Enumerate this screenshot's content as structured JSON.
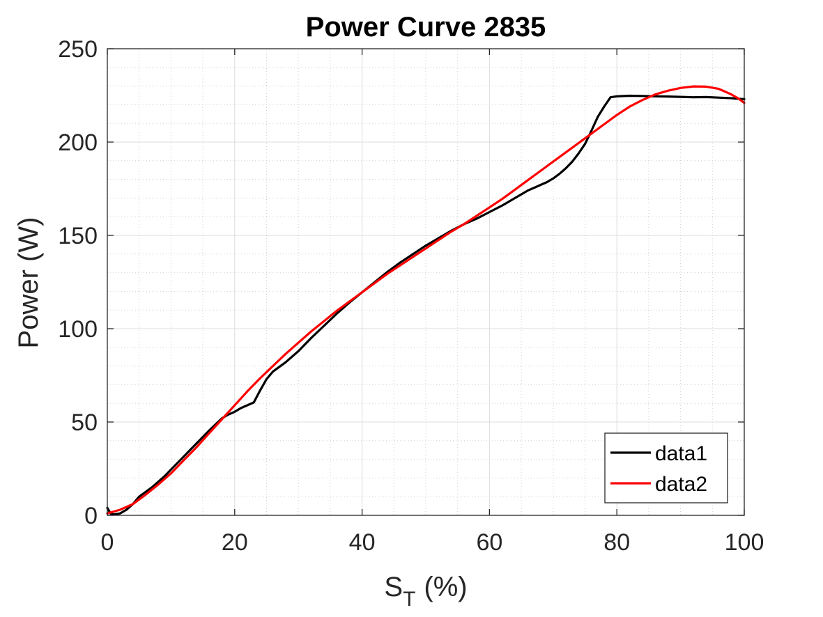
{
  "chart_data": {
    "type": "line",
    "title": "Power Curve 2835",
    "xlabel": "S",
    "xlabel_sub": "T",
    "xlabel_unit": "(%)",
    "ylabel": "Power (W)",
    "xlim": [
      0,
      100
    ],
    "ylim": [
      0,
      250
    ],
    "xticks": [
      0,
      20,
      40,
      60,
      80,
      100
    ],
    "yticks": [
      0,
      50,
      100,
      150,
      200,
      250
    ],
    "grid": "major and minor",
    "legend_position": "bottom-right",
    "series": [
      {
        "name": "data1",
        "color": "#000000",
        "x": [
          0,
          0.5,
          1,
          2,
          3,
          4,
          5,
          6,
          7,
          8,
          9,
          10,
          12,
          14,
          16,
          18,
          19,
          20,
          21,
          22,
          23,
          24,
          25,
          26,
          28,
          30,
          32,
          34,
          36,
          38,
          40,
          42,
          44,
          46,
          48,
          50,
          52,
          54,
          56,
          58,
          60,
          62,
          64,
          66,
          68,
          69,
          70,
          71,
          72,
          73,
          74,
          75,
          76,
          77,
          78,
          79,
          80,
          82,
          84,
          86,
          88,
          90,
          92,
          94,
          96,
          98,
          99,
          100
        ],
        "y": [
          4,
          1,
          0.5,
          1,
          3,
          6,
          10,
          12.5,
          15,
          18,
          21,
          24.5,
          31.5,
          38.5,
          45.5,
          52,
          54,
          55.5,
          57.5,
          59,
          60.5,
          67,
          73,
          77,
          82,
          88,
          95,
          101.5,
          108,
          114,
          119.5,
          125,
          130.5,
          135.5,
          140,
          144.5,
          148.5,
          152.5,
          156,
          159,
          162.5,
          166,
          170,
          174,
          177,
          178.5,
          180.5,
          183,
          186,
          189.5,
          194,
          199,
          206,
          213.5,
          219,
          224,
          224.5,
          224.8,
          224.7,
          224.5,
          224.4,
          224.2,
          224,
          224.1,
          223.8,
          223.5,
          223.2,
          223
        ]
      },
      {
        "name": "data2",
        "color": "#ff0000",
        "x": [
          0,
          1,
          2,
          3,
          4,
          5,
          6,
          8,
          10,
          12,
          14,
          16,
          18,
          20,
          22,
          24,
          26,
          28,
          30,
          32,
          34,
          36,
          38,
          40,
          42,
          44,
          46,
          48,
          50,
          52,
          54,
          56,
          58,
          60,
          62,
          64,
          66,
          68,
          70,
          72,
          74,
          76,
          78,
          80,
          82,
          84,
          86,
          88,
          90,
          92,
          94,
          96,
          97,
          98,
          99,
          100
        ],
        "y": [
          1,
          2,
          3,
          4.5,
          6,
          8.5,
          11,
          16.5,
          22.5,
          29.5,
          36.5,
          44,
          51.5,
          59,
          66.5,
          73.5,
          80,
          86.5,
          92.5,
          98.5,
          104,
          109.5,
          114.5,
          119.5,
          124.5,
          129.5,
          134,
          138.5,
          143,
          147.5,
          152,
          156,
          160.5,
          165,
          169.5,
          174.5,
          179.5,
          184.5,
          189.5,
          194.5,
          199.5,
          204.5,
          209.5,
          214.5,
          219,
          222.5,
          225.5,
          227.5,
          229,
          229.8,
          229.7,
          228.5,
          227,
          225.5,
          223.5,
          221
        ]
      }
    ]
  }
}
